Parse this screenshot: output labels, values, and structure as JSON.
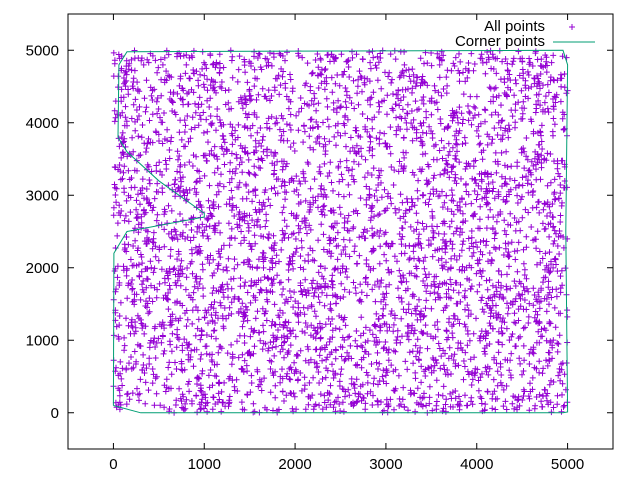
{
  "chart_data": {
    "type": "scatter",
    "title": "",
    "xlabel": "",
    "ylabel": "",
    "xlim": [
      -500,
      5500
    ],
    "ylim": [
      -500,
      5500
    ],
    "x_ticks": [
      0,
      1000,
      2000,
      3000,
      4000,
      5000
    ],
    "y_ticks": [
      0,
      1000,
      2000,
      3000,
      4000,
      5000
    ],
    "x_tick_labels": [
      "0",
      "1000",
      "2000",
      "3000",
      "4000",
      "5000"
    ],
    "y_tick_labels": [
      "0",
      "1000",
      "2000",
      "3000",
      "4000",
      "5000"
    ],
    "grid": false,
    "legend_position": "top-right",
    "series": [
      {
        "name": "All points",
        "marker": "plus",
        "color": "#9400d3",
        "distribution": "uniform random",
        "count": 4000,
        "x_range": [
          0,
          5000
        ],
        "y_range": [
          0,
          5000
        ]
      },
      {
        "name": "Corner points",
        "marker": "line",
        "color": "#009e73",
        "points": [
          [
            0,
            100
          ],
          [
            5,
            2200
          ],
          [
            150,
            2500
          ],
          [
            1000,
            2700
          ],
          [
            1000,
            2750
          ],
          [
            500,
            3200
          ],
          [
            150,
            3600
          ],
          [
            50,
            3800
          ],
          [
            60,
            4800
          ],
          [
            150,
            4980
          ],
          [
            4950,
            5000
          ],
          [
            5000,
            4800
          ],
          [
            4980,
            2500
          ],
          [
            5000,
            10
          ],
          [
            4950,
            0
          ],
          [
            300,
            0
          ],
          [
            0,
            100
          ]
        ]
      }
    ]
  }
}
